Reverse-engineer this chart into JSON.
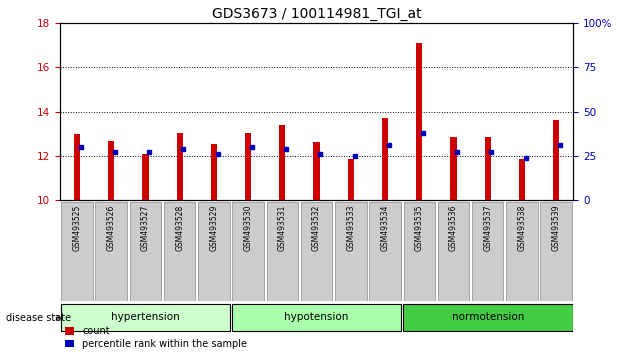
{
  "title": "GDS3673 / 100114981_TGI_at",
  "samples": [
    "GSM493525",
    "GSM493526",
    "GSM493527",
    "GSM493528",
    "GSM493529",
    "GSM493530",
    "GSM493531",
    "GSM493532",
    "GSM493533",
    "GSM493534",
    "GSM493535",
    "GSM493536",
    "GSM493537",
    "GSM493538",
    "GSM493539"
  ],
  "count_values": [
    13.0,
    12.65,
    12.1,
    13.05,
    12.55,
    13.05,
    13.4,
    12.6,
    11.85,
    13.7,
    17.1,
    12.85,
    12.85,
    11.85,
    13.6
  ],
  "percentile_values": [
    30.0,
    27.0,
    27.0,
    29.0,
    26.0,
    30.0,
    29.0,
    26.0,
    25.0,
    31.0,
    38.0,
    27.0,
    27.0,
    24.0,
    31.0
  ],
  "ylim_left": [
    10,
    18
  ],
  "ylim_right": [
    0,
    100
  ],
  "yticks_left": [
    10,
    12,
    14,
    16,
    18
  ],
  "yticks_right": [
    0,
    25,
    50,
    75,
    100
  ],
  "ytick_labels_right": [
    "0",
    "25",
    "50",
    "75",
    "100%"
  ],
  "bar_color_red": "#cc0000",
  "bar_color_blue": "#0000bb",
  "bar_width": 0.18,
  "disease_state_label": "disease state",
  "legend_count": "count",
  "legend_pct": "percentile rank within the sample",
  "tick_color_left": "#cc0000",
  "tick_color_right": "#0000bb",
  "group_defs": [
    {
      "label": "hypertension",
      "start": 0,
      "end": 5,
      "color": "#ccffcc"
    },
    {
      "label": "hypotension",
      "start": 5,
      "end": 10,
      "color": "#aaffaa"
    },
    {
      "label": "normotension",
      "start": 10,
      "end": 15,
      "color": "#44cc44"
    }
  ]
}
